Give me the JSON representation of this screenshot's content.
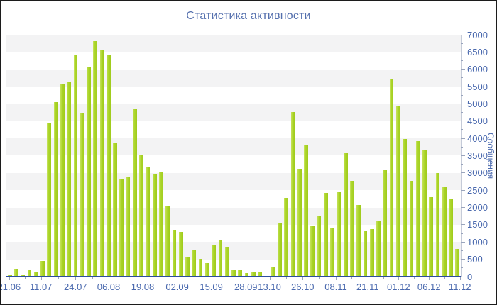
{
  "title": "Статистика активности",
  "chart_data": {
    "type": "bar",
    "title": "Статистика активности",
    "xlabel": "",
    "ylabel": "Сообщения",
    "ylim": [
      0,
      7000
    ],
    "y_tick_step": 500,
    "y_minor_tick_step": 250,
    "grid": "horizontal-bands",
    "legend": "none",
    "x_tick_labels": [
      "21.06",
      "11.07",
      "24.07",
      "06.08",
      "19.08",
      "02.09",
      "15.09",
      "28.09",
      "13.10",
      "26.10",
      "08.11",
      "21.11",
      "01.12",
      "06.12",
      "11.12"
    ],
    "x_tick_positions": [
      0.006,
      0.076,
      0.152,
      0.225,
      0.3,
      0.376,
      0.451,
      0.527,
      0.579,
      0.652,
      0.725,
      0.795,
      0.863,
      0.93,
      0.998
    ],
    "values": [
      50,
      230,
      40,
      215,
      140,
      460,
      4450,
      5060,
      5570,
      5630,
      6420,
      4720,
      6060,
      6820,
      6560,
      6400,
      3850,
      2810,
      2870,
      4840,
      3520,
      3190,
      2960,
      3020,
      2030,
      1350,
      1300,
      550,
      750,
      510,
      390,
      920,
      1050,
      870,
      205,
      185,
      95,
      115,
      130,
      30,
      270,
      1540,
      2270,
      4760,
      3120,
      3790,
      1480,
      1760,
      2420,
      1400,
      2450,
      3570,
      2780,
      2070,
      1330,
      1380,
      1620,
      3070,
      5730,
      4930,
      3980,
      2780,
      3930,
      3680,
      2290,
      3000,
      2610,
      2250,
      800
    ],
    "colors": {
      "bar": "#abd52a",
      "bar_highlight": "#c6e25c",
      "band": "#f3f3f4",
      "title": "#5570ae",
      "axis_label": "#4a69ae",
      "baseline": "#2d4e9e",
      "tick": "#9aa5bd"
    }
  }
}
